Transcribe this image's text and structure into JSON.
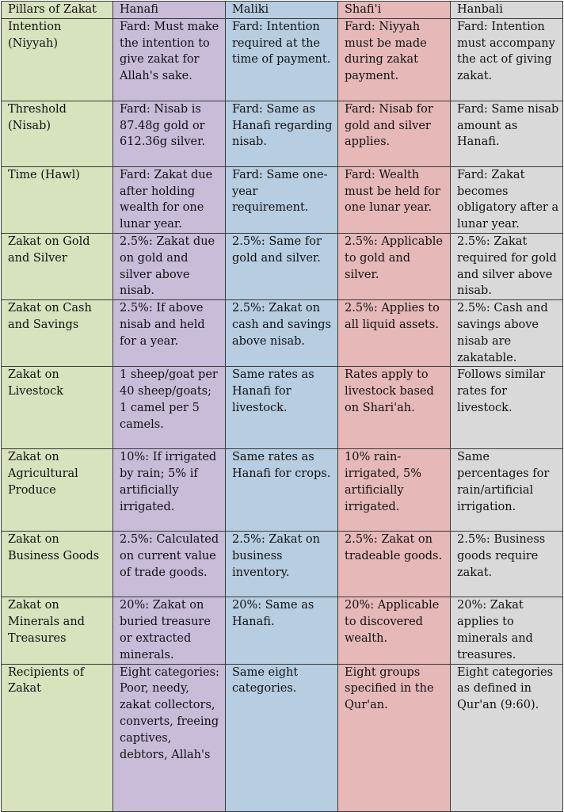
{
  "headers": [
    "Pillars of Zakat",
    "Hanafi",
    "Maliki",
    "Shafi'i",
    "Hanbali"
  ],
  "colors": {
    "pillars": "#d6e3bd",
    "hanafi": "#c8bcd9",
    "maliki": "#b7cde2",
    "shafii": "#e6b8b8",
    "hanbali": "#d9d9d9",
    "border": "#3a3a3a"
  },
  "rows": [
    {
      "pillar": "Intention (Niyyah)",
      "hanafi": "Fard: Must make the intention to give zakat for Allah's sake.",
      "maliki": "Fard: Intention required at the time of payment.",
      "shafii": "Fard: Niyyah must be made during zakat payment.",
      "hanbali": "Fard: Intention must accompany the act of giving zakat."
    },
    {
      "pillar": "Threshold (Nisab)",
      "hanafi": "Fard: Nisab is 87.48g gold or 612.36g silver.",
      "maliki": "Fard: Same as Hanafi regarding nisab.",
      "shafii": "Fard: Nisab for gold and silver applies.",
      "hanbali": "Fard: Same nisab amount as Hanafi."
    },
    {
      "pillar": "Time (Hawl)",
      "hanafi": "Fard: Zakat due after holding wealth for one lunar year.",
      "maliki": "Fard: Same one-year requirement.",
      "shafii": "Fard: Wealth must be held for one lunar year.",
      "hanbali": "Fard: Zakat becomes obligatory after a lunar year."
    },
    {
      "pillar": "Zakat on Gold and Silver",
      "hanafi": "2.5%: Zakat due on gold and silver above nisab.",
      "maliki": "2.5%: Same for gold and silver.",
      "shafii": "2.5%: Applicable to gold and silver.",
      "hanbali": "2.5%: Zakat required for gold and silver above nisab."
    },
    {
      "pillar": "Zakat on Cash and Savings",
      "hanafi": "2.5%: If above nisab and held for a year.",
      "maliki": "2.5%: Zakat on cash and savings above nisab.",
      "shafii": "2.5%: Applies to all liquid assets.",
      "hanbali": "2.5%: Cash and savings above nisab are zakatable."
    },
    {
      "pillar": "Zakat on Livestock",
      "hanafi": "1 sheep/goat per 40 sheep/goats; 1 camel per 5 camels.",
      "maliki": "Same rates as Hanafi for livestock.",
      "shafii": "Rates apply to livestock based on Shari'ah.",
      "hanbali": "Follows similar rates for livestock."
    },
    {
      "pillar": "Zakat on Agricultural Produce",
      "hanafi": "10%: If irrigated by rain; 5% if artificially irrigated.",
      "maliki": "Same rates as Hanafi for crops.",
      "shafii": "10% rain-irrigated, 5% artificially irrigated.",
      "hanbali": "Same percentages for rain/artificial irrigation."
    },
    {
      "pillar": "Zakat on Business Goods",
      "hanafi": "2.5%: Calculated on current value of trade goods.",
      "maliki": "2.5%: Zakat on business inventory.",
      "shafii": "2.5%: Zakat on tradeable goods.",
      "hanbali": "2.5%: Business goods require zakat."
    },
    {
      "pillar": "Zakat on Minerals and Treasures",
      "hanafi": "20%: Zakat on buried treasure or extracted minerals.",
      "maliki": "20%: Same as Hanafi.",
      "shafii": "20%: Applicable to discovered wealth.",
      "hanbali": "20%: Zakat applies to minerals and treasures."
    },
    {
      "pillar": "Recipients of Zakat",
      "hanafi": "Eight categories: Poor, needy, zakat collectors, converts, freeing captives, debtors, Allah's",
      "maliki": "Same eight categories.",
      "shafii": "Eight groups specified in the Qur'an.",
      "hanbali": "Eight categories as defined in Qur'an (9:60)."
    }
  ]
}
